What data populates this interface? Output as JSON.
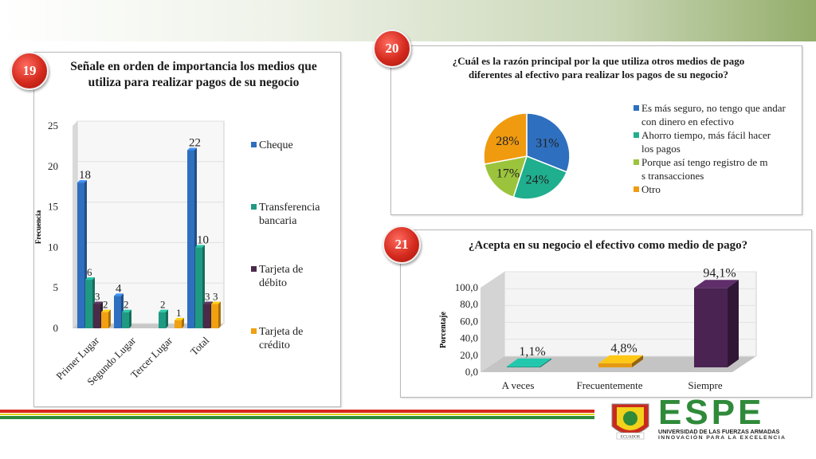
{
  "slides": {
    "c19": {
      "badge": "19",
      "title": "Señale en orden de importancia los medios que utiliza para realizar pagos de su negocio"
    },
    "c20": {
      "badge": "20",
      "title": "¿Cuál es la razón principal por la que utiliza otros medios de pago diferentes al efectivo para realizar los pagos de su negocio?"
    },
    "c21": {
      "badge": "21",
      "title": "¿Acepta en su negocio el efectivo como medio de pago?"
    }
  },
  "branding": {
    "logo_text": "ESPE",
    "subtitle1": "UNIVERSIDAD DE LAS FUERZAS ARMADAS",
    "subtitle2": "INNOVACIÓN PARA LA EXCELENCIA",
    "seal_text": "ECUADOR"
  },
  "chart_data": [
    {
      "type": "bar",
      "title": "Señale en orden de importancia los medios que utiliza para realizar pagos de su negocio",
      "ylabel": "Frecuencia",
      "ylim": [
        0,
        25
      ],
      "yticks": [
        "0",
        "5",
        "10",
        "15",
        "20",
        "25"
      ],
      "categories": [
        "Primer Lugar",
        "Segundo Lugar",
        "Tercer Lugar",
        "Total"
      ],
      "series": [
        {
          "name": "Cheque",
          "color": "#2e6fbf",
          "values": [
            18,
            4,
            null,
            22
          ]
        },
        {
          "name": "Transferencia bancaria",
          "color": "#1f9a82",
          "values": [
            6,
            2,
            2,
            10
          ]
        },
        {
          "name": "Tarjeta de débito",
          "color": "#4a2a4a",
          "values": [
            3,
            null,
            null,
            3
          ]
        },
        {
          "name": "Tarjeta de crédito",
          "color": "#f0a010",
          "values": [
            2,
            null,
            1,
            3
          ]
        }
      ],
      "legend": "right",
      "data_labels": [
        {
          "text": "18",
          "series": 0,
          "cat": 0
        },
        {
          "text": "6",
          "series": 1,
          "cat": 0
        },
        {
          "text": "3",
          "series": 2,
          "cat": 0
        },
        {
          "text": "2",
          "series": 3,
          "cat": 0
        },
        {
          "text": "4",
          "series": 0,
          "cat": 1
        },
        {
          "text": "2",
          "series": 1,
          "cat": 1
        },
        {
          "text": "2",
          "series": 1,
          "cat": 2
        },
        {
          "text": "1",
          "series": 3,
          "cat": 2
        },
        {
          "text": "22",
          "series": 0,
          "cat": 3
        },
        {
          "text": "10",
          "series": 1,
          "cat": 3
        },
        {
          "text": "3",
          "series": 2,
          "cat": 3
        },
        {
          "text": "3",
          "series": 3,
          "cat": 3
        }
      ]
    },
    {
      "type": "pie",
      "title": "¿Cuál es la razón principal por la que utiliza otros medios de pago diferentes al efectivo para realizar los pagos de su negocio?",
      "labels": [
        "Es más seguro, no tengo que andar con dinero en efectivo",
        "Ahorro tiempo, más fácil hacer los pagos",
        "Porque así tengo registro de mis transacciones",
        "Otro"
      ],
      "values": [
        31,
        24,
        17,
        28
      ],
      "value_labels": [
        "31%",
        "24%",
        "17%",
        "28%"
      ],
      "colors": [
        "#2e6fbf",
        "#1fae8e",
        "#9bc43c",
        "#f09a10"
      ],
      "legend": "right"
    },
    {
      "type": "bar",
      "title": "¿Acepta en su negocio el efectivo como medio de pago?",
      "ylabel": "Porcentaje",
      "ylim": [
        0,
        100
      ],
      "yticks": [
        "0,0",
        "20,0",
        "40,0",
        "60,0",
        "80,0",
        "100,0"
      ],
      "categories": [
        "A veces",
        "Frecuentemente",
        "Siempre"
      ],
      "values": [
        1.1,
        4.8,
        94.1
      ],
      "value_labels": [
        "1,1%",
        "4,8%",
        "94,1%"
      ],
      "colors": [
        "#1a9a86",
        "#e59a12",
        "#4a2352"
      ]
    }
  ]
}
